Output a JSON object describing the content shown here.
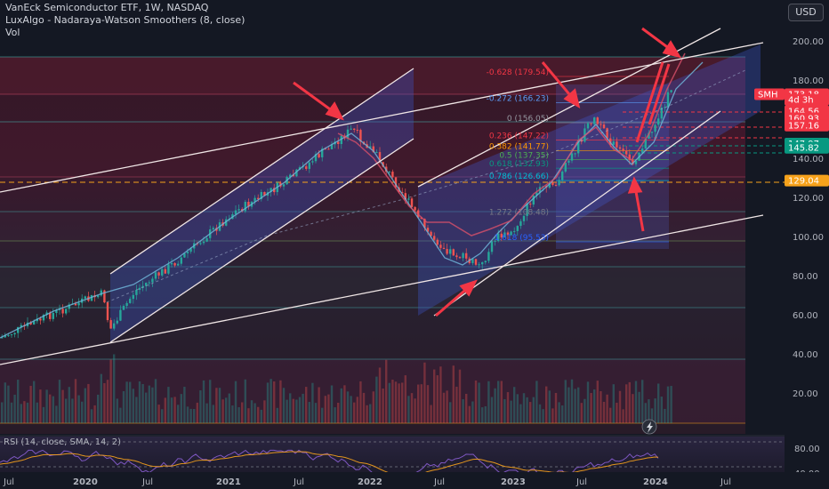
{
  "header": {
    "title": "VanEck Semiconductor ETF, 1W, NASDAQ",
    "indicator": "LuxAlgo - Nadaraya-Watson Smoothers (8, close)",
    "volume": "Vol"
  },
  "currency_button": "USD",
  "rsi_label": "RSI (14, close, SMA, 14, 2)",
  "price_axis": [
    {
      "label": "200.00",
      "value": 200
    },
    {
      "label": "180.00",
      "value": 180
    },
    {
      "label": "160.00",
      "value": 160
    },
    {
      "label": "140.00",
      "value": 140
    },
    {
      "label": "120.00",
      "value": 120
    },
    {
      "label": "100.00",
      "value": 100
    },
    {
      "label": "80.00",
      "value": 80
    },
    {
      "label": "60.00",
      "value": 60
    },
    {
      "label": "40.00",
      "value": 40
    },
    {
      "label": "20.00",
      "value": 20
    }
  ],
  "rsi_axis": [
    {
      "label": "80.00",
      "value": 80
    },
    {
      "label": "40.00",
      "value": 40
    }
  ],
  "time_axis": [
    {
      "label": "Jul",
      "bold": false
    },
    {
      "label": "2020",
      "bold": true
    },
    {
      "label": "Jul",
      "bold": false
    },
    {
      "label": "2021",
      "bold": true
    },
    {
      "label": "Jul",
      "bold": false
    },
    {
      "label": "2022",
      "bold": true
    },
    {
      "label": "Jul",
      "bold": false
    },
    {
      "label": "2023",
      "bold": true
    },
    {
      "label": "Jul",
      "bold": false
    },
    {
      "label": "2024",
      "bold": true
    },
    {
      "label": "Jul",
      "bold": false
    }
  ],
  "price_badges": [
    {
      "label": "SMH",
      "color": "#f23645"
    },
    {
      "label": "173.18",
      "color": "#f23645",
      "value": 173.18
    },
    {
      "label": "4d 3h",
      "color": "#f23645",
      "value": 170.4
    },
    {
      "label": "164.56",
      "color": "#f23645",
      "value": 164.56
    },
    {
      "label": "160.93",
      "color": "#f23645",
      "value": 160.93
    },
    {
      "label": "157.16",
      "color": "#f23645",
      "value": 157.16
    },
    {
      "label": "147.97",
      "color": "#089981",
      "value": 147.97
    },
    {
      "label": "145.82",
      "color": "#089981",
      "value": 145.82
    },
    {
      "label": "129.04",
      "color": "#f7a21b",
      "value": 129.04
    }
  ],
  "fib_levels": [
    {
      "label": "-0.628 (179.54)",
      "color": "#f23645",
      "value": 179.54
    },
    {
      "label": "-0.272 (166.23)",
      "color": "#5b9cf6",
      "value": 166.23
    },
    {
      "label": "0 (156.05)",
      "color": "#9598a1",
      "value": 156.05
    },
    {
      "label": "0.236 (147.22)",
      "color": "#f23645",
      "value": 147.22
    },
    {
      "label": "0.382 (141.77)",
      "color": "#ff9800",
      "value": 141.77
    },
    {
      "label": "0.5 (137.35)",
      "color": "#4caf50",
      "value": 137.35
    },
    {
      "label": "0.618 (132.93)",
      "color": "#089981",
      "value": 132.93
    },
    {
      "label": "0.786 (126.66)",
      "color": "#00bcd4",
      "value": 126.66
    },
    {
      "label": "1.272 (108.48)",
      "color": "#787b86",
      "value": 108.48
    },
    {
      "label": "1.618 (95.53)",
      "color": "#2962ff",
      "value": 95.53
    }
  ]
}
